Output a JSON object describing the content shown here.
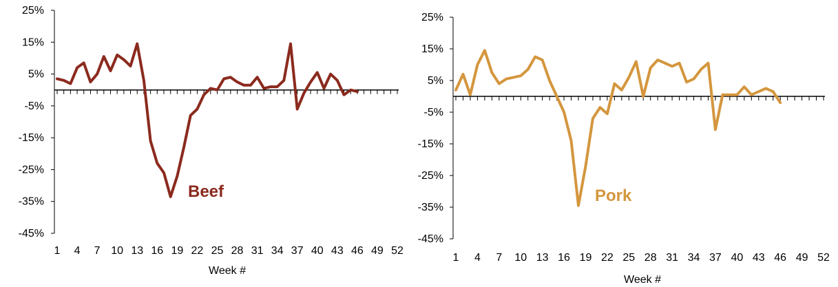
{
  "chart_data": [
    {
      "type": "line",
      "xlabel": "Week #",
      "ylabel": "",
      "ylim": [
        -45,
        25
      ],
      "yticks": [
        "25%",
        "15%",
        "5%",
        "-5%",
        "-15%",
        "-25%",
        "-35%",
        "-45%"
      ],
      "xlim": [
        1,
        52
      ],
      "xticks": [
        1,
        4,
        7,
        10,
        13,
        16,
        19,
        22,
        25,
        28,
        31,
        34,
        37,
        40,
        43,
        46,
        49,
        52
      ],
      "grid": false,
      "series": [
        {
          "name": "Beef",
          "color": "#8B2A1E",
          "x": [
            1,
            2,
            3,
            4,
            5,
            6,
            7,
            8,
            9,
            10,
            11,
            12,
            13,
            14,
            15,
            16,
            17,
            18,
            19,
            20,
            21,
            22,
            23,
            24,
            25,
            26,
            27,
            28,
            29,
            30,
            31,
            32,
            33,
            34,
            35,
            36,
            37,
            38,
            39,
            40,
            41,
            42,
            43,
            44,
            45,
            46
          ],
          "values": [
            3.5,
            3,
            2,
            7,
            8.5,
            2.5,
            5,
            10.5,
            6,
            11,
            9.5,
            7.5,
            14.5,
            3,
            -16,
            -23,
            -26,
            -33.5,
            -27,
            -18,
            -8,
            -6,
            -1.5,
            0.5,
            0,
            3.5,
            4,
            2.5,
            1.5,
            1.5,
            4,
            0.5,
            1,
            1,
            3,
            14.5,
            -6,
            -1,
            2.5,
            5.5,
            0.5,
            5,
            3,
            -1.5,
            0,
            -0.5
          ]
        }
      ]
    },
    {
      "type": "line",
      "xlabel": "Week #",
      "ylabel": "",
      "ylim": [
        -45,
        25
      ],
      "yticks": [
        "25%",
        "15%",
        "5%",
        "-5%",
        "-15%",
        "-25%",
        "-35%",
        "-45%"
      ],
      "xlim": [
        1,
        52
      ],
      "xticks": [
        1,
        4,
        7,
        10,
        13,
        16,
        19,
        22,
        25,
        28,
        31,
        34,
        37,
        40,
        43,
        46,
        49,
        52
      ],
      "grid": false,
      "series": [
        {
          "name": "Pork",
          "color": "#D4963E",
          "x": [
            1,
            2,
            3,
            4,
            5,
            6,
            7,
            8,
            9,
            10,
            11,
            12,
            13,
            14,
            15,
            16,
            17,
            18,
            19,
            20,
            21,
            22,
            23,
            24,
            25,
            26,
            27,
            28,
            29,
            30,
            31,
            32,
            33,
            34,
            35,
            36,
            37,
            38,
            39,
            40,
            41,
            42,
            43,
            44,
            45,
            46
          ],
          "values": [
            2,
            7,
            0.5,
            10,
            14.5,
            7.5,
            4,
            5.5,
            6,
            6.5,
            8.5,
            12.5,
            11.5,
            5,
            0,
            -5,
            -14,
            -34.5,
            -22,
            -7,
            -3.5,
            -5.5,
            4,
            2,
            6,
            11,
            0,
            9,
            11.5,
            10.5,
            9.5,
            10.5,
            4.5,
            5.5,
            8.5,
            10.5,
            -10.5,
            0.5,
            0.5,
            0.5,
            3,
            0.5,
            1.5,
            2.5,
            1.5,
            -2
          ]
        }
      ]
    }
  ]
}
